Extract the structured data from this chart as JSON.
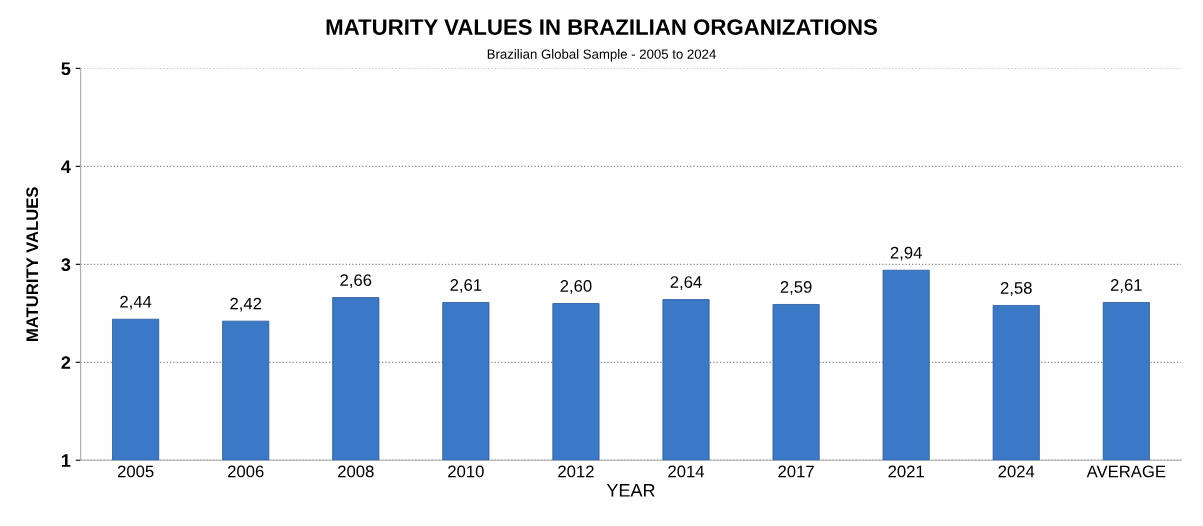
{
  "chart_data": {
    "type": "bar",
    "title": "MATURITY VALUES IN BRAZILIAN ORGANIZATIONS",
    "subtitle": "Brazilian Global Sample - 2005 to 2024",
    "xlabel": "YEAR",
    "ylabel": "MATURITY VALUES",
    "categories": [
      "2005",
      "2006",
      "2008",
      "2010",
      "2012",
      "2014",
      "2017",
      "2021",
      "2024",
      "AVERAGE"
    ],
    "values": [
      2.44,
      2.42,
      2.66,
      2.61,
      2.6,
      2.64,
      2.59,
      2.94,
      2.58,
      2.61
    ],
    "value_labels": [
      "2,44",
      "2,42",
      "2,66",
      "2,61",
      "2,60",
      "2,64",
      "2,59",
      "2,94",
      "2,58",
      "2,61"
    ],
    "color": "#3b78c6",
    "ylim": [
      1,
      5
    ],
    "yticks": [
      1,
      2,
      3,
      4,
      5
    ],
    "grid": "y"
  }
}
